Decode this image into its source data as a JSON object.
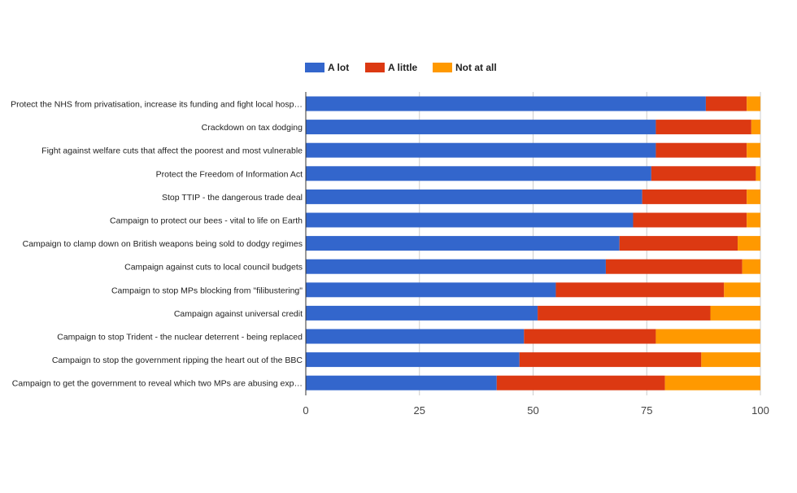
{
  "chart_data": {
    "type": "bar",
    "orientation": "horizontal",
    "stacked": true,
    "title": "",
    "xlabel": "",
    "ylabel": "",
    "xlim": [
      0,
      100
    ],
    "ticks": [
      0,
      25,
      50,
      75,
      100
    ],
    "grid": true,
    "legend_position": "top",
    "categories": [
      "Protect the NHS from privatisation, increase its funding and fight local hosp…",
      "Crackdown on tax dodging",
      "Fight against welfare cuts that affect the poorest and most vulnerable",
      "Protect the Freedom of Information Act",
      "Stop TTIP - the dangerous trade deal",
      "Campaign to protect our bees - vital to life on Earth",
      "Campaign to clamp down on British weapons being sold to dodgy regimes",
      "Campaign against cuts to local council budgets",
      "Campaign to stop MPs blocking from \"filibustering\"",
      "Campaign against universal credit",
      "Campaign to stop Trident - the nuclear deterrent - being replaced",
      "Campaign to stop the government ripping the heart out of the BBC",
      "Campaign to get the government to reveal which two MPs are abusing exp…"
    ],
    "series": [
      {
        "name": "A lot",
        "color": "#3366cc",
        "values": [
          88,
          77,
          77,
          76,
          74,
          72,
          69,
          66,
          55,
          51,
          48,
          47,
          42
        ]
      },
      {
        "name": "A little",
        "color": "#dc3912",
        "values": [
          9,
          21,
          20,
          23,
          23,
          25,
          26,
          30,
          37,
          38,
          29,
          40,
          37
        ]
      },
      {
        "name": "Not at all",
        "color": "#ff9900",
        "values": [
          3,
          2,
          3,
          1,
          3,
          3,
          5,
          4,
          8,
          11,
          23,
          13,
          21
        ]
      }
    ]
  }
}
